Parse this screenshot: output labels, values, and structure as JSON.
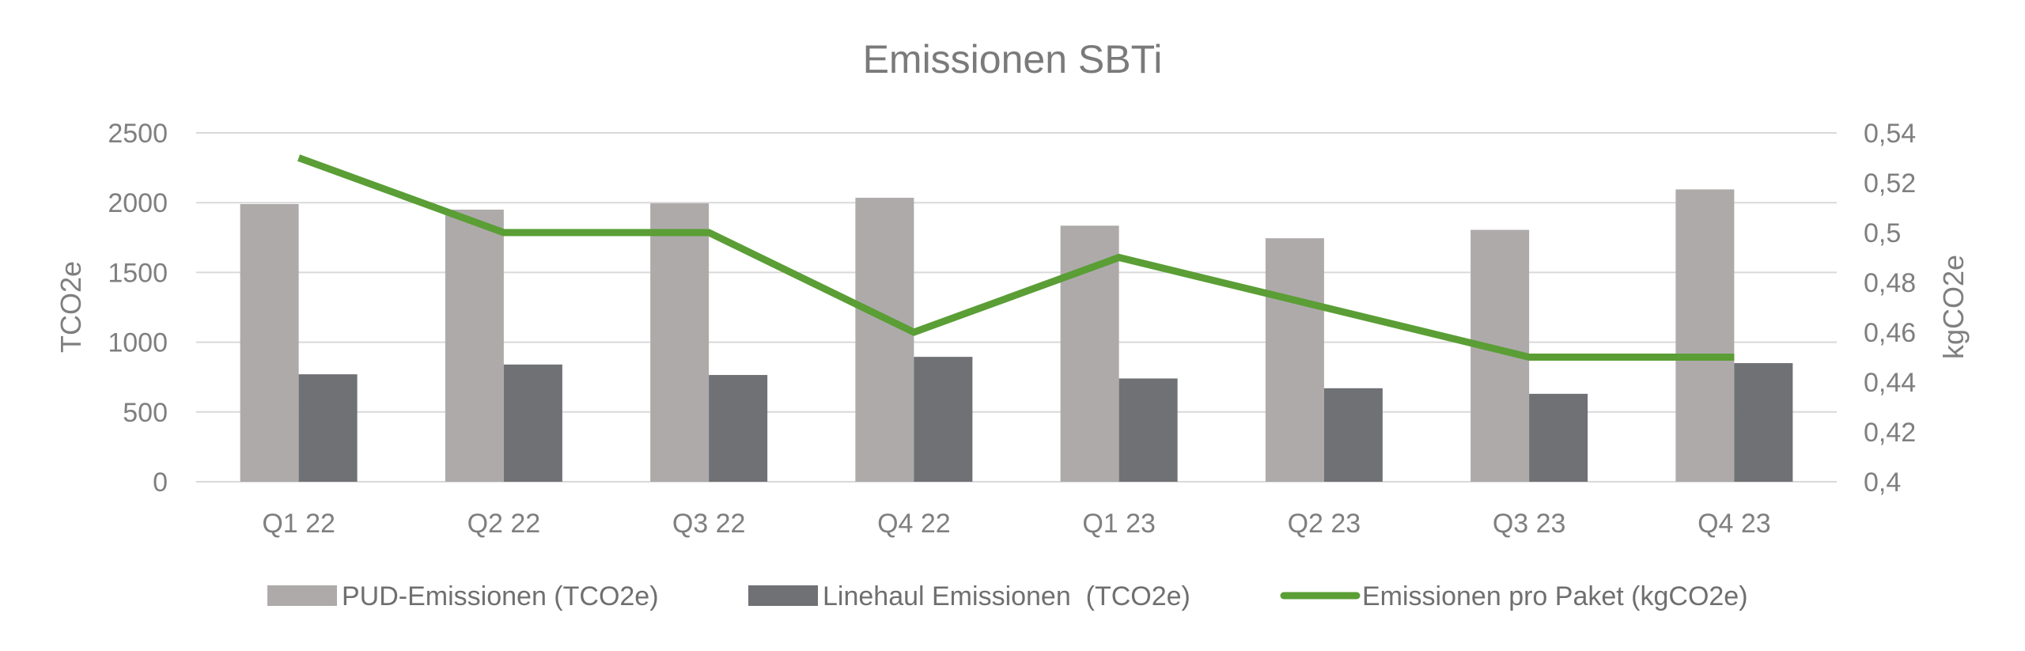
{
  "chart_data": {
    "type": "bar",
    "title": "Emissionen SBTi",
    "categories": [
      "Q1 22",
      "Q2 22",
      "Q3 22",
      "Q4 22",
      "Q1 23",
      "Q2 23",
      "Q3 23",
      "Q4 23"
    ],
    "series": [
      {
        "name": "PUD-Emissionen (TCO2e)",
        "kind": "bar",
        "axis": "left",
        "color": "#aeaaaa",
        "values": [
          1990,
          1950,
          1995,
          2035,
          1835,
          1745,
          1805,
          2095
        ]
      },
      {
        "name": "Linehaul Emissionen  (TCO2e)",
        "kind": "bar",
        "axis": "left",
        "color": "#6f7175",
        "values": [
          770,
          840,
          765,
          895,
          740,
          670,
          630,
          850
        ]
      },
      {
        "name": "Emissionen pro Paket (kgCO2e)",
        "kind": "line",
        "axis": "right",
        "color": "#5a9e35",
        "values": [
          0.53,
          0.5,
          0.5,
          0.46,
          0.49,
          0.47,
          0.45,
          0.45
        ]
      }
    ],
    "ylabel": "TCO2e",
    "y2label": "kgCO2e",
    "ylim": [
      0,
      2500
    ],
    "y2lim": [
      0.4,
      0.54
    ],
    "yticks": [
      "0",
      "500",
      "1000",
      "1500",
      "2000",
      "2500"
    ],
    "y2ticks": [
      "0,4",
      "0,42",
      "0,44",
      "0,46",
      "0,48",
      "0,5",
      "0,52",
      "0,54"
    ],
    "grid": true,
    "legend_position": "bottom",
    "gridline_color": "#d9d9d9"
  }
}
